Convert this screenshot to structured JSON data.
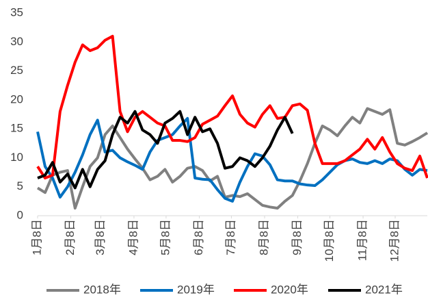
{
  "chart_data": {
    "type": "line",
    "x": [
      0,
      7,
      14,
      21,
      28,
      35,
      42,
      49,
      56,
      63,
      70,
      77,
      84,
      91,
      98,
      105,
      112,
      119,
      126,
      133,
      140,
      147,
      154,
      161,
      168,
      175,
      182,
      189,
      196,
      203,
      210,
      217,
      224,
      231,
      238,
      245,
      252,
      259,
      266,
      273,
      280,
      287,
      294,
      301,
      308,
      315,
      322,
      329,
      336,
      343,
      350,
      357,
      364
    ],
    "xlim": [
      0,
      364
    ],
    "xticks": [
      {
        "value": 0,
        "label": "1月8日"
      },
      {
        "value": 31,
        "label": "2月8日"
      },
      {
        "value": 59,
        "label": "3月8日"
      },
      {
        "value": 90,
        "label": "4月8日"
      },
      {
        "value": 120,
        "label": "5月8日"
      },
      {
        "value": 151,
        "label": "6月8日"
      },
      {
        "value": 181,
        "label": "7月8日"
      },
      {
        "value": 212,
        "label": "8月8日"
      },
      {
        "value": 243,
        "label": "9月8日"
      },
      {
        "value": 273,
        "label": "10月8日"
      },
      {
        "value": 304,
        "label": "11月8日"
      },
      {
        "value": 334,
        "label": "12月8日"
      }
    ],
    "ylim": [
      0,
      35
    ],
    "yticks": [
      0,
      5,
      10,
      15,
      20,
      25,
      30,
      35
    ],
    "grid": false,
    "legend": "bottom",
    "series": [
      {
        "name": "2018年",
        "color": "#808080",
        "values": [
          4.8,
          4,
          7,
          7.5,
          7.8,
          1.3,
          5,
          8.5,
          10,
          14,
          15.5,
          13.5,
          11.5,
          9.8,
          8.2,
          6.2,
          6.8,
          8,
          5.8,
          6.8,
          8.2,
          8.5,
          7.8,
          6,
          6.8,
          3.2,
          3.5,
          3.3,
          3.8,
          2.8,
          1.8,
          1.5,
          1.3,
          2.5,
          3.5,
          6,
          9,
          12.5,
          15.5,
          14.8,
          13.8,
          15.5,
          17,
          16,
          18.5,
          18,
          17.5,
          18.3,
          12.5,
          12.2,
          12.8,
          13.5,
          14.3
        ]
      },
      {
        "name": "2019年",
        "color": "#0070c0",
        "values": [
          14.5,
          8.5,
          6.5,
          3.2,
          5,
          7.5,
          10.5,
          14,
          16.5,
          11,
          11.3,
          10,
          9.3,
          8.7,
          8,
          11,
          13,
          13.5,
          14,
          15.5,
          16.8,
          6.5,
          6.3,
          6.2,
          4.5,
          3,
          2.5,
          5.8,
          8.5,
          10.7,
          10.3,
          8.8,
          6.2,
          6,
          6,
          5.5,
          5.3,
          5.2,
          6.2,
          7.5,
          8.8,
          9.5,
          9.8,
          9.2,
          9,
          9.5,
          9,
          9.8,
          9.5,
          8,
          7,
          8,
          7.8
        ]
      },
      {
        "name": "2020年",
        "color": "#ff0000",
        "values": [
          8.5,
          6.5,
          7,
          18,
          22.5,
          26.5,
          29.5,
          28.5,
          29,
          30.3,
          31,
          18,
          14.5,
          17,
          18,
          17,
          16,
          15.5,
          13,
          13,
          12.8,
          13.5,
          15.8,
          16.5,
          17.2,
          19,
          20.7,
          17.5,
          16,
          15.3,
          17.5,
          19,
          16.8,
          17,
          19,
          19.3,
          18.2,
          12.5,
          9,
          9,
          9,
          9.5,
          10.5,
          11.5,
          13.2,
          11.5,
          13.5,
          11,
          9,
          8.2,
          7.8,
          10.3,
          6.5
        ]
      },
      {
        "name": "2021年",
        "color": "#000000",
        "values": [
          6.5,
          7,
          9.2,
          5.8,
          7.2,
          4.8,
          8,
          5,
          8,
          9.5,
          14,
          17,
          16,
          18,
          14.8,
          14,
          12.5,
          16,
          16.8,
          18,
          14,
          17,
          14.5,
          15,
          12.5,
          8.2,
          8.5,
          10,
          9.5,
          8.5,
          10,
          12,
          14.8,
          17,
          14.2,
          null,
          null,
          null,
          null,
          null,
          null,
          null,
          null,
          null,
          null,
          null,
          null,
          null,
          null,
          null,
          null,
          null,
          null
        ]
      }
    ]
  }
}
